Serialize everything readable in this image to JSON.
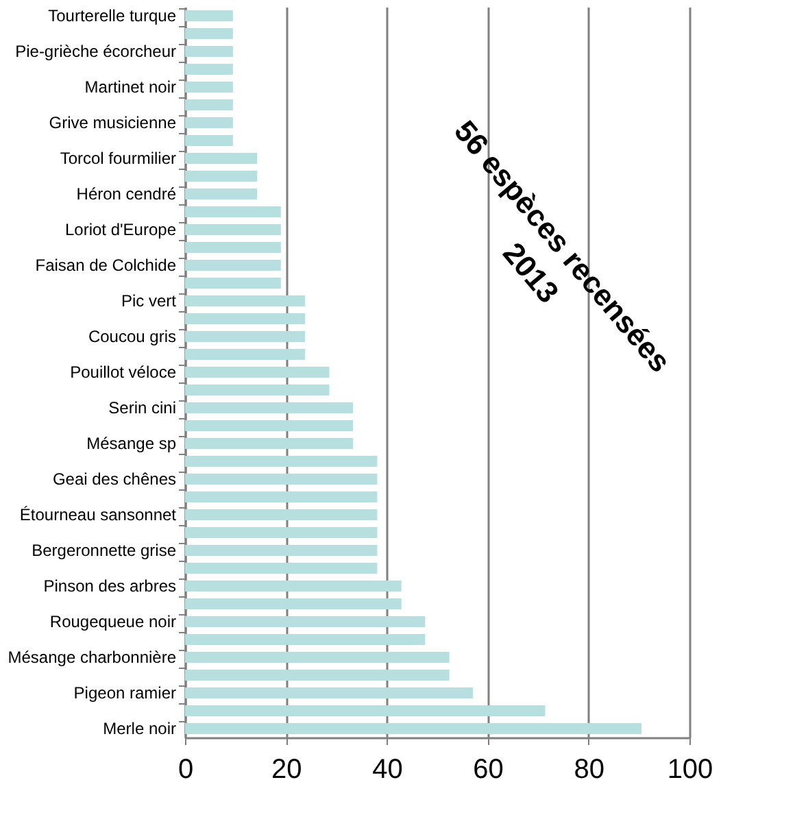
{
  "chart_data": {
    "type": "bar",
    "orientation": "horizontal",
    "color": "#b7dfe0",
    "categories": [
      "Tourterelle turque",
      null,
      "Pie-grièche écorcheur",
      null,
      "Martinet noir",
      null,
      "Grive musicienne",
      null,
      "Torcol fourmilier",
      null,
      "Héron cendré",
      null,
      "Loriot d'Europe",
      null,
      "Faisan de Colchide",
      null,
      "Pic vert",
      null,
      "Coucou gris",
      null,
      "Pouillot véloce",
      null,
      "Serin cini",
      null,
      "Mésange sp",
      null,
      "Geai des chênes",
      null,
      "Étourneau sansonnet",
      null,
      "Bergeronnette grise",
      null,
      "Pinson des arbres",
      null,
      "Rougequeue noir",
      null,
      "Mésange charbonnière",
      null,
      "Pigeon ramier",
      null,
      "Merle noir"
    ],
    "values": [
      9.5,
      9.5,
      9.5,
      9.5,
      9.5,
      9.5,
      9.5,
      9.5,
      14.3,
      14.3,
      14.3,
      19,
      19,
      19,
      19,
      19,
      23.8,
      23.8,
      23.8,
      23.8,
      28.6,
      28.6,
      33.3,
      33.3,
      33.3,
      38.1,
      38.1,
      38.1,
      38.1,
      38.1,
      38.1,
      38.1,
      42.9,
      42.9,
      47.6,
      47.6,
      52.4,
      52.4,
      57.1,
      71.4,
      90.5
    ],
    "xlim": [
      0,
      100
    ],
    "xticks": [
      0,
      20,
      40,
      60,
      80,
      100
    ],
    "grid": "x",
    "annotations": [
      "56 espèces recensées\n2013"
    ]
  }
}
